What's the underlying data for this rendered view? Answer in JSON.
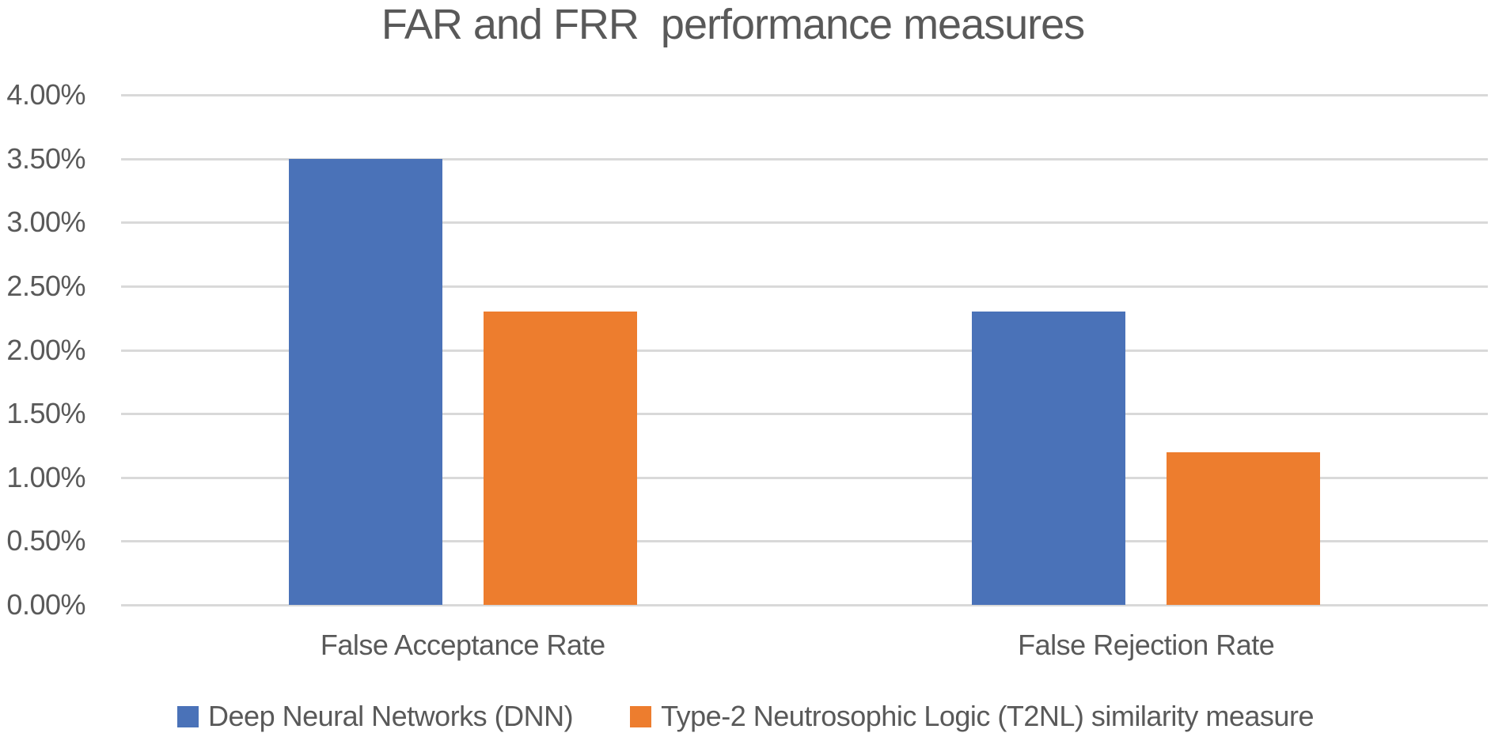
{
  "chart_data": {
    "type": "bar",
    "title": "FAR and FRR  performance measures",
    "categories": [
      "False Acceptance Rate",
      "False Rejection Rate"
    ],
    "series": [
      {
        "name": "Deep Neural Networks (DNN)",
        "color": "#4a72b8",
        "values": [
          3.5,
          2.3
        ]
      },
      {
        "name": "Type-2 Neutrosophic Logic (T2NL) similarity measure",
        "color": "#ed7d2e",
        "values": [
          2.3,
          1.2
        ]
      }
    ],
    "xlabel": "",
    "ylabel": "",
    "ylim": [
      0,
      4
    ],
    "y_tick_step": 0.5,
    "y_ticks": [
      "4.00%",
      "3.50%",
      "3.00%",
      "2.50%",
      "2.00%",
      "1.50%",
      "1.00%",
      "0.50%",
      "0.00%"
    ],
    "grid": true,
    "gridline_color": "#d9d9d9",
    "legend_position": "bottom",
    "value_format": "percent"
  },
  "colors": {
    "background": "#ffffff",
    "text": "#595959"
  }
}
